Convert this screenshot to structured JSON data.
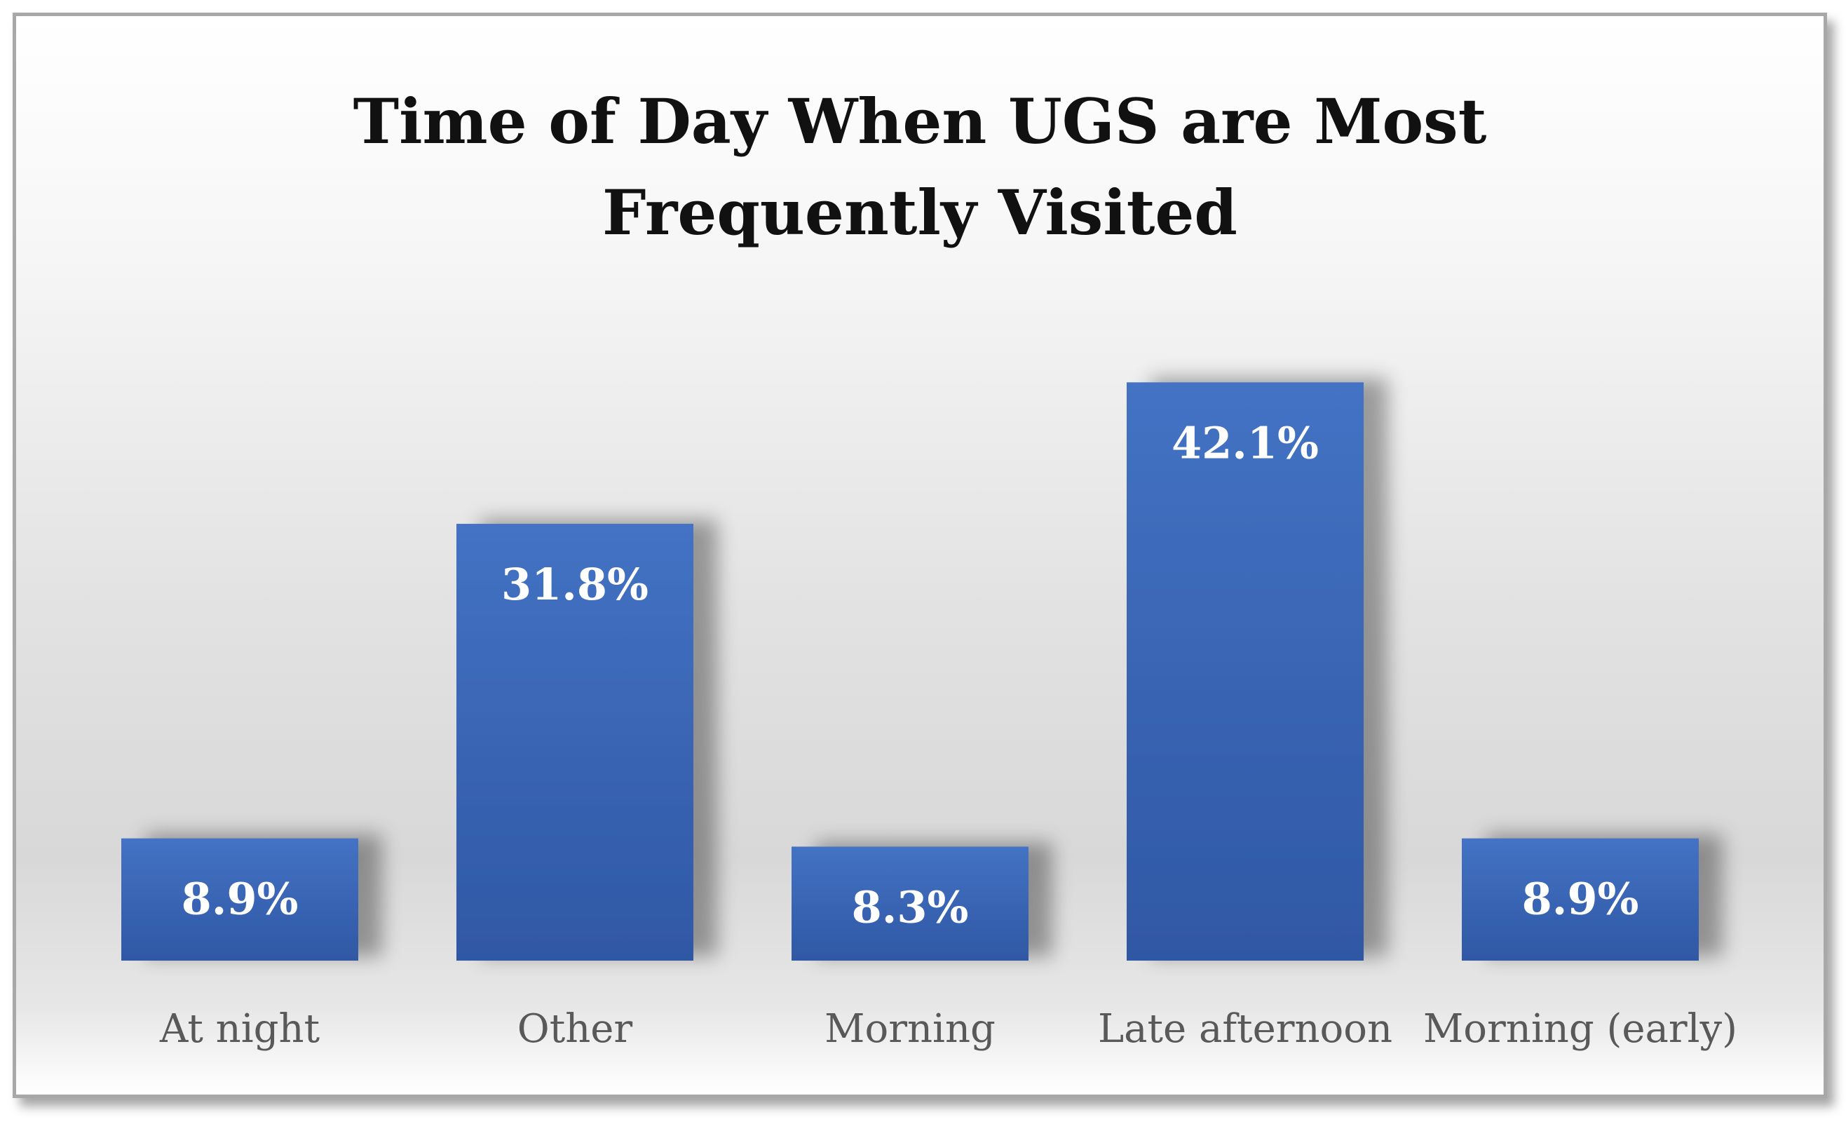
{
  "chart_data": {
    "type": "bar",
    "title_lines": [
      "Time of Day When UGS are Most",
      "Frequently Visited"
    ],
    "categories": [
      "At night",
      "Other",
      "Morning",
      "Late afternoon",
      "Morning (early)"
    ],
    "values": [
      8.9,
      31.8,
      8.3,
      42.1,
      8.9
    ],
    "value_labels": [
      "8.9%",
      "31.8%",
      "8.3%",
      "42.1%",
      "8.9%"
    ],
    "unit": "%",
    "xlabel": "",
    "ylabel": "",
    "ylim": [
      0,
      46.3
    ],
    "grid": false,
    "legend": "none",
    "colors": {
      "bar_top": "#4472C4",
      "bar_bottom": "#2F58A4",
      "label_text": "#ffffff",
      "category_text": "#595959",
      "title_text": "#111111"
    }
  }
}
